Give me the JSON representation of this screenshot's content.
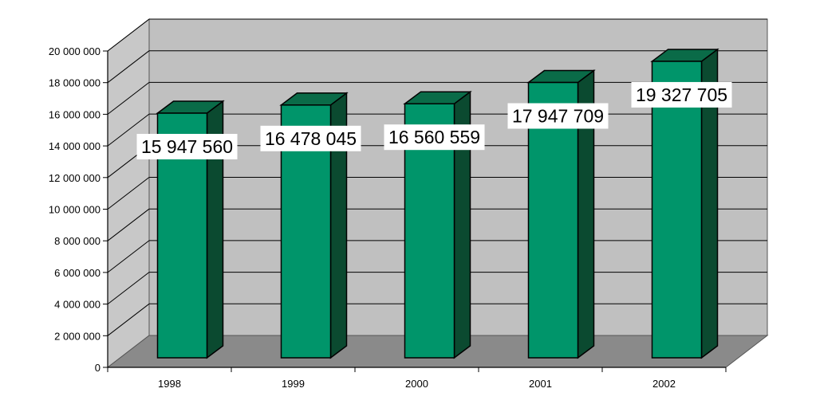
{
  "chart_data": {
    "type": "bar",
    "categories": [
      "1998",
      "1999",
      "2000",
      "2001",
      "2002"
    ],
    "values": [
      15947560,
      16478045,
      16560559,
      17947709,
      19327705
    ],
    "data_labels": [
      "15 947 560",
      "16 478 045",
      "16 560 559",
      "17 947 709",
      "19 327 705"
    ],
    "ylim": [
      0,
      20000000
    ],
    "yticks": [
      0,
      2000000,
      4000000,
      6000000,
      8000000,
      10000000,
      12000000,
      14000000,
      16000000,
      18000000,
      20000000
    ],
    "ytick_labels": [
      "0",
      "2 000 000",
      "4 000 000",
      "6 000 000",
      "8 000 000",
      "10 000 000",
      "12 000 000",
      "14 000 000",
      "16 000 000",
      "18 000 000",
      "20 000 000"
    ],
    "grid": true,
    "three_d": true,
    "legend": "none",
    "colors": {
      "bar_front": "#00956a",
      "bar_side": "#0b4a30",
      "bar_top": "#0a6b48",
      "back_wall": "#c0c0c0",
      "side_wall": "#c8c8c8",
      "floor": "#8a8a8a",
      "gridline": "#000000"
    }
  }
}
